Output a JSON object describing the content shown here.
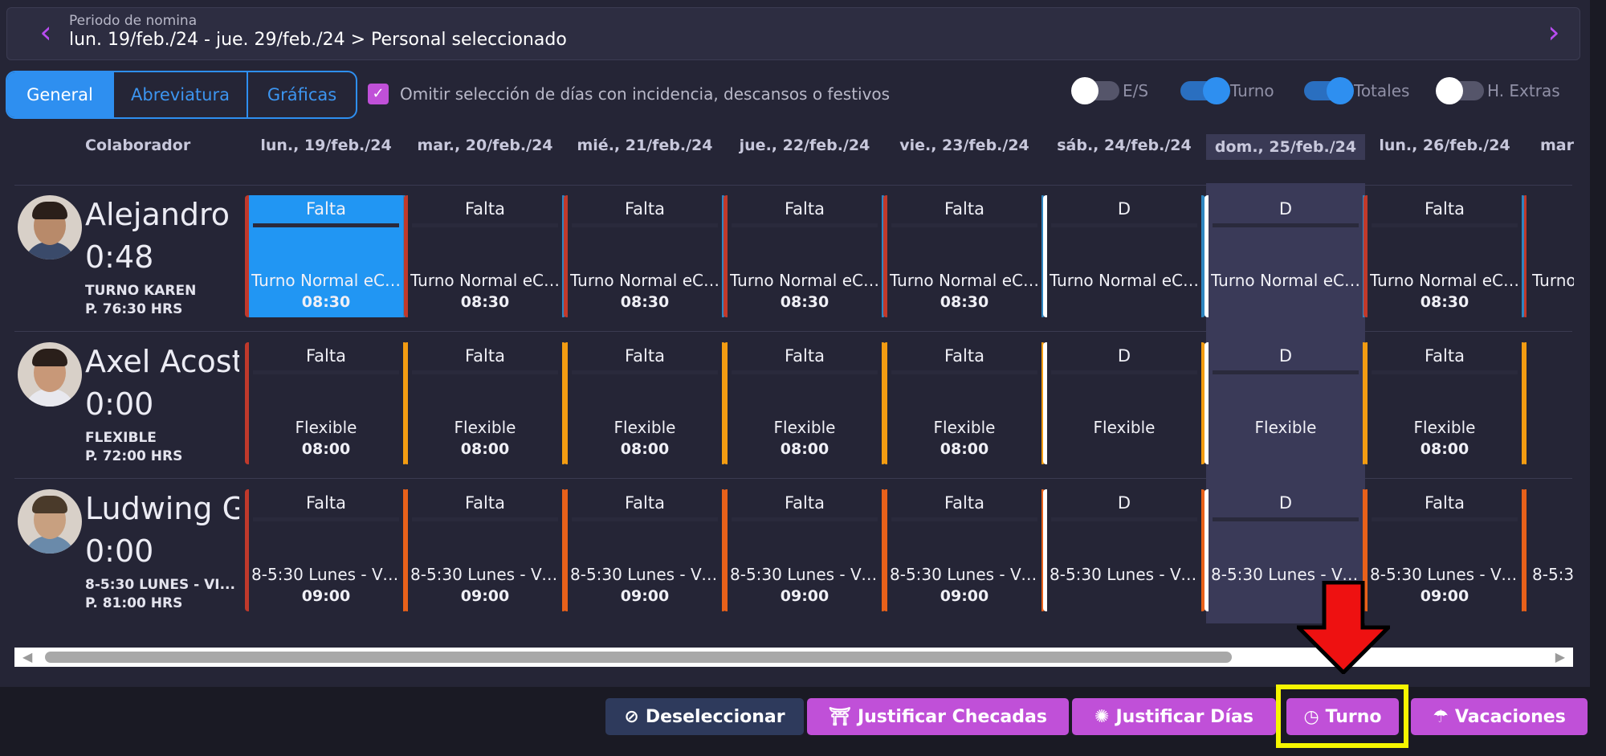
{
  "period": {
    "subtitle": "Periodo de nomina",
    "range": "lun. 19/feb./24 - jue. 29/feb./24 > Personal seleccionado"
  },
  "tabs": [
    "General",
    "Abreviatura",
    "Gráficas"
  ],
  "omit_label": "Omitir selección de días con incidencia, descansos o festivos",
  "toggles": [
    {
      "label": "E/S",
      "on": false
    },
    {
      "label": "Turno",
      "on": true
    },
    {
      "label": "Totales",
      "on": true
    },
    {
      "label": "H. Extras",
      "on": false
    }
  ],
  "columns": {
    "collaborator": "Colaborador",
    "days": [
      "lun., 19/feb./24",
      "mar., 20/feb./24",
      "mié., 21/feb./24",
      "jue., 22/feb./24",
      "vie., 23/feb./24",
      "sáb., 24/feb./24",
      "dom., 25/feb./24",
      "lun., 26/feb./24",
      "mar"
    ]
  },
  "employees": [
    {
      "name": "Alejandro",
      "hours": "0:48",
      "shift": "TURNO KAREN",
      "planned": "P. 76:30 HRS",
      "cells": [
        {
          "status": "Falta",
          "shift": "Turno Normal eCl...",
          "time": "08:30"
        },
        {
          "status": "Falta",
          "shift": "Turno Normal eCl...",
          "time": "08:30"
        },
        {
          "status": "Falta",
          "shift": "Turno Normal eCl...",
          "time": "08:30"
        },
        {
          "status": "Falta",
          "shift": "Turno Normal eCl...",
          "time": "08:30"
        },
        {
          "status": "Falta",
          "shift": "Turno Normal eCl...",
          "time": "08:30"
        },
        {
          "status": "D",
          "shift": "Turno Normal eCl...",
          "time": ""
        },
        {
          "status": "D",
          "shift": "Turno Normal eCl...",
          "time": ""
        },
        {
          "status": "Falta",
          "shift": "Turno Normal eCl...",
          "time": "08:30"
        },
        {
          "status": "",
          "shift": "Turno",
          "time": ""
        }
      ]
    },
    {
      "name": "Axel Acost",
      "hours": "0:00",
      "shift": "FLEXIBLE",
      "planned": "P. 72:00 HRS",
      "cells": [
        {
          "status": "Falta",
          "shift": "Flexible",
          "time": "08:00"
        },
        {
          "status": "Falta",
          "shift": "Flexible",
          "time": "08:00"
        },
        {
          "status": "Falta",
          "shift": "Flexible",
          "time": "08:00"
        },
        {
          "status": "Falta",
          "shift": "Flexible",
          "time": "08:00"
        },
        {
          "status": "Falta",
          "shift": "Flexible",
          "time": "08:00"
        },
        {
          "status": "D",
          "shift": "Flexible",
          "time": ""
        },
        {
          "status": "D",
          "shift": "Flexible",
          "time": ""
        },
        {
          "status": "Falta",
          "shift": "Flexible",
          "time": "08:00"
        },
        {
          "status": "",
          "shift": "",
          "time": ""
        }
      ]
    },
    {
      "name": "Ludwing G",
      "hours": "0:00",
      "shift": "8-5:30 LUNES - VI...",
      "planned": "P. 81:00 HRS",
      "cells": [
        {
          "status": "Falta",
          "shift": "8-5:30 Lunes - Vi...",
          "time": "09:00"
        },
        {
          "status": "Falta",
          "shift": "8-5:30 Lunes - Vi...",
          "time": "09:00"
        },
        {
          "status": "Falta",
          "shift": "8-5:30 Lunes - Vi...",
          "time": "09:00"
        },
        {
          "status": "Falta",
          "shift": "8-5:30 Lunes - Vi...",
          "time": "09:00"
        },
        {
          "status": "Falta",
          "shift": "8-5:30 Lunes - Vi...",
          "time": "09:00"
        },
        {
          "status": "D",
          "shift": "8-5:30 Lunes - Vi...",
          "time": ""
        },
        {
          "status": "D",
          "shift": "8-5:30 Lunes - Vi...",
          "time": ""
        },
        {
          "status": "Falta",
          "shift": "8-5:30 Lunes - Vi...",
          "time": "09:00"
        },
        {
          "status": "",
          "shift": "8-5:3",
          "time": ""
        }
      ]
    }
  ],
  "buttons": [
    {
      "label": "Deseleccionar",
      "icon": "ban-icon"
    },
    {
      "label": "Justificar Checadas",
      "icon": "door-icon"
    },
    {
      "label": "Justificar Días",
      "icon": "car-icon"
    },
    {
      "label": "Turno",
      "icon": "clock-icon"
    },
    {
      "label": "Vacaciones",
      "icon": "umbrella-icon"
    }
  ],
  "colors": {
    "accent": "#2e8ff0",
    "purple": "#c050d8",
    "falta": "#c0392b",
    "absent_flex": "#f39c12",
    "absent_ludwing": "#e8611a",
    "rest": "#ffffff",
    "blue_edge": "#2e86c1"
  }
}
